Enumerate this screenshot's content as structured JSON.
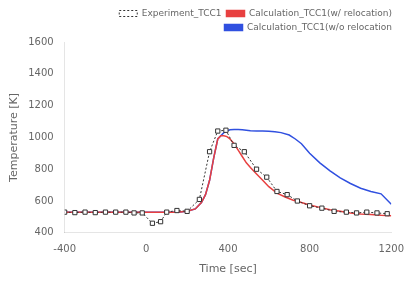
{
  "chart_data": {
    "type": "line",
    "title": "",
    "xlabel": "Time [sec]",
    "ylabel": "Temperature [K]",
    "xlim": [
      -400,
      1200
    ],
    "ylim": [
      400,
      1600
    ],
    "xticks": [
      -400,
      0,
      400,
      800,
      1200
    ],
    "yticks": [
      400,
      600,
      800,
      1000,
      1200,
      1400,
      1600
    ],
    "grid": false,
    "legend": "upper right",
    "series": [
      {
        "name": "Experiment_TCC1",
        "color": "#333333",
        "marker": "square",
        "line_style": "dotted",
        "x": [
          -400,
          -350,
          -300,
          -250,
          -200,
          -150,
          -100,
          -60,
          -20,
          30,
          70,
          100,
          150,
          200,
          260,
          310,
          350,
          390,
          430,
          480,
          540,
          590,
          640,
          690,
          740,
          800,
          860,
          920,
          980,
          1030,
          1080,
          1130,
          1180
        ],
        "values": [
          530,
          527,
          530,
          527,
          530,
          530,
          530,
          525,
          525,
          460,
          470,
          530,
          540,
          535,
          610,
          910,
          1040,
          1045,
          950,
          910,
          800,
          750,
          660,
          640,
          600,
          570,
          555,
          535,
          530,
          525,
          530,
          525,
          520
        ]
      },
      {
        "name": "Calculation_TCC1(w/ relocation)",
        "color": "#e84040",
        "marker": "none",
        "line_style": "solid",
        "x": [
          -400,
          -200,
          -100,
          0,
          50,
          100,
          150,
          200,
          240,
          270,
          290,
          310,
          330,
          350,
          365,
          380,
          395,
          410,
          430,
          450,
          470,
          490,
          510,
          540,
          570,
          600,
          640,
          680,
          720,
          760,
          800,
          850,
          900,
          950,
          1000,
          1050,
          1100,
          1150,
          1200
        ],
        "values": [
          530,
          530,
          530,
          530,
          530,
          530,
          530,
          535,
          550,
          590,
          640,
          730,
          870,
          990,
          1010,
          1010,
          1005,
          990,
          960,
          920,
          880,
          840,
          810,
          770,
          730,
          690,
          650,
          625,
          605,
          590,
          575,
          560,
          545,
          535,
          525,
          518,
          515,
          510,
          508
        ]
      },
      {
        "name": "Calculation_TCC1(w/o relocation",
        "color": "#3050e0",
        "marker": "none",
        "line_style": "solid",
        "x": [
          -400,
          -200,
          -100,
          0,
          50,
          100,
          150,
          200,
          240,
          270,
          290,
          310,
          330,
          350,
          365,
          380,
          395,
          410,
          430,
          450,
          470,
          490,
          510,
          540,
          570,
          600,
          630,
          660,
          700,
          730,
          760,
          800,
          850,
          900,
          950,
          1000,
          1050,
          1100,
          1150,
          1200
        ],
        "values": [
          530,
          530,
          530,
          530,
          530,
          530,
          530,
          535,
          550,
          590,
          640,
          730,
          870,
          990,
          1010,
          1030,
          1040,
          1048,
          1050,
          1050,
          1048,
          1045,
          1042,
          1040,
          1040,
          1038,
          1035,
          1030,
          1015,
          990,
          960,
          900,
          840,
          790,
          745,
          710,
          680,
          660,
          645,
          580
        ]
      }
    ]
  }
}
